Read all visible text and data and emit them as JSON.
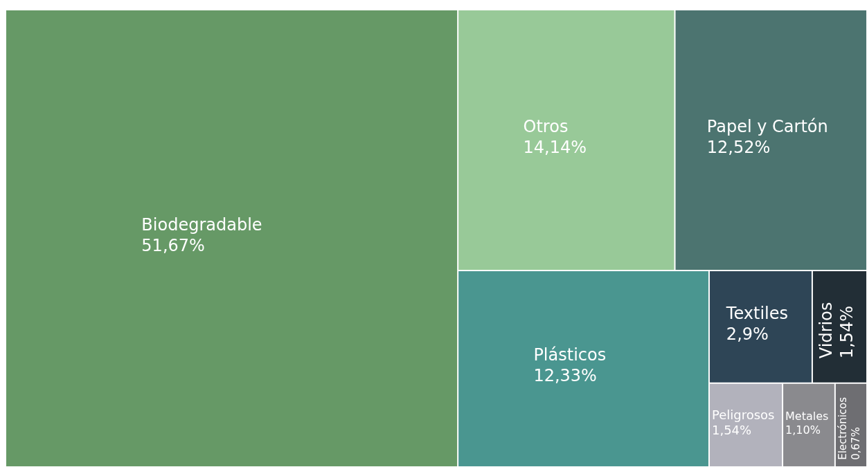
{
  "chart_data": {
    "type": "other",
    "categories": [
      "Biodegradable",
      "Otros",
      "Papel y Cartón",
      "Plásticos",
      "Textiles",
      "Vidrios",
      "Peligrosos",
      "Metales",
      "Electrónicos"
    ],
    "values": [
      51.67,
      14.14,
      12.52,
      12.33,
      2.9,
      1.54,
      1.54,
      1.1,
      0.67
    ],
    "value_labels": [
      "51,67%",
      "14,14%",
      "12,52%",
      "12,33%",
      "2,9%",
      "1,54%",
      "1,54%",
      "1,10%",
      "0,67%"
    ],
    "colors": [
      "#669966",
      "#98c998",
      "#4c7470",
      "#4a9690",
      "#2e4556",
      "#222e36",
      "#b2b2bc",
      "#8a8a8e",
      "#6e6e72"
    ]
  }
}
